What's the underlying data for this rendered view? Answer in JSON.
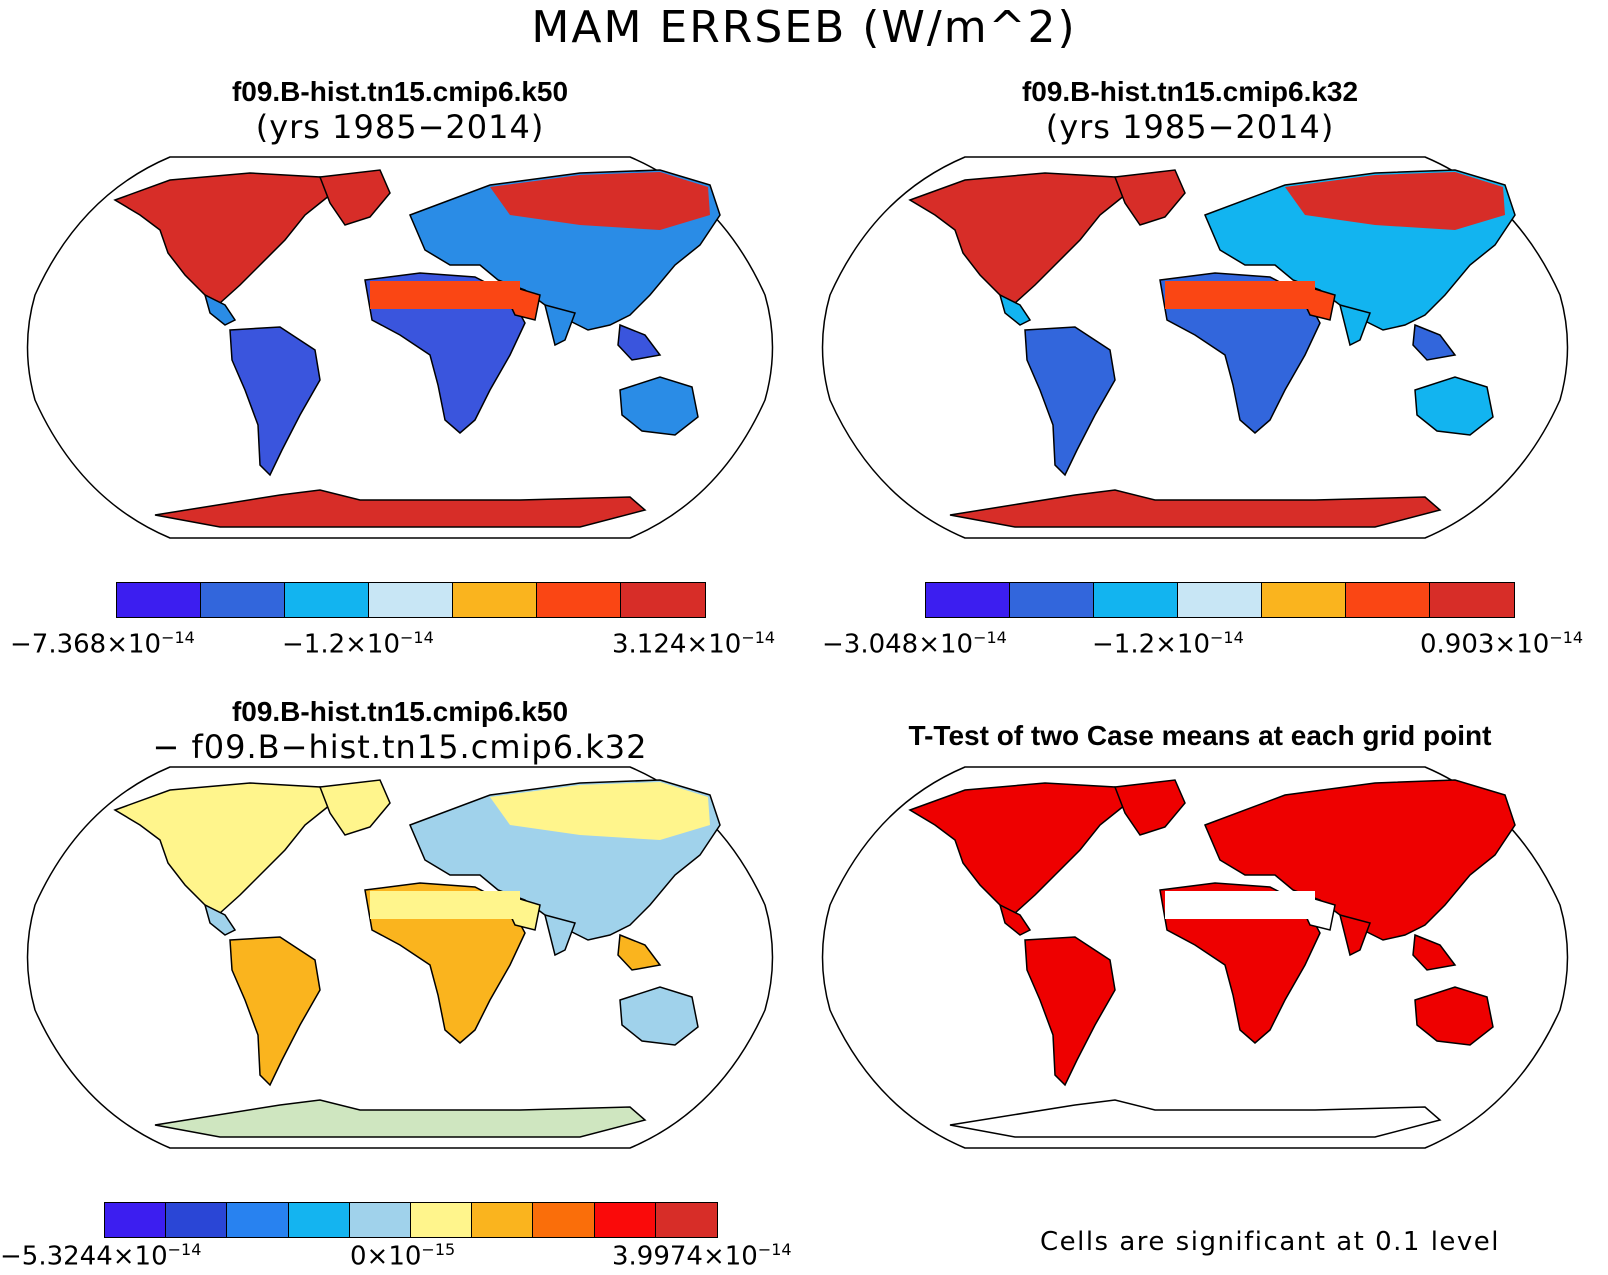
{
  "title": "MAM ERRSEB (W/m^2)",
  "panels": {
    "k50": {
      "title": "f09.B-hist.tn15.cmip6.k50",
      "subtitle": "(yrs 1985−2014)"
    },
    "k32": {
      "title": "f09.B-hist.tn15.cmip6.k32",
      "subtitle": "(yrs 1985−2014)"
    },
    "diff": {
      "title": "f09.B-hist.tn15.cmip6.k50",
      "subtitle": "− f09.B−hist.tn15.cmip6.k32"
    },
    "ttest": {
      "title": "T-Test of two Case means at each grid point",
      "footnote": "Cells are significant at 0.1 level"
    }
  },
  "colorbars": {
    "k50": {
      "colors": [
        "#3c1ef0",
        "#3266dc",
        "#12b4f0",
        "#c8e6f5",
        "#fab41e",
        "#fa4614",
        "#d72d28"
      ],
      "ticks": [
        {
          "mant": "−7.368×10",
          "exp": "−14"
        },
        {
          "mant": "−1.2×10",
          "exp": "−14"
        },
        {
          "mant": "3.124×10",
          "exp": "−14"
        }
      ]
    },
    "k32": {
      "colors": [
        "#3c1ef0",
        "#3266dc",
        "#12b4f0",
        "#c8e6f5",
        "#fab41e",
        "#fa4614",
        "#d72d28"
      ],
      "ticks": [
        {
          "mant": "−3.048×10",
          "exp": "−14"
        },
        {
          "mant": "−1.2×10",
          "exp": "−14"
        },
        {
          "mant": "0.903×10",
          "exp": "−14"
        }
      ]
    },
    "diff": {
      "colors": [
        "#3c1ef0",
        "#2a46d6",
        "#2882f0",
        "#14b4f0",
        "#a0d2eb",
        "#fff58c",
        "#fab41e",
        "#fa6e0a",
        "#fa0a0a",
        "#d72d28"
      ],
      "ticks": [
        {
          "mant": "−5.3244×10",
          "exp": "−14"
        },
        {
          "mant": "0×10",
          "exp": "−15"
        },
        {
          "mant": "3.9974×10",
          "exp": "−14"
        }
      ]
    }
  },
  "map_fills": {
    "k50": {
      "north": "#d72d28",
      "mid": "#2a8ce6",
      "tropics": "#3a55dd",
      "desert": "#fa4614",
      "antarctic": "#d72d28"
    },
    "k32": {
      "north": "#d72d28",
      "mid": "#12b4f0",
      "tropics": "#3266dc",
      "desert": "#fa4614",
      "antarctic": "#d72d28"
    },
    "diff": {
      "north": "#fff58c",
      "mid": "#a0d2eb",
      "tropics": "#fab41e",
      "desert": "#fff58c",
      "antarctic": "#cfe6c0"
    },
    "ttest": {
      "north": "#ee0000",
      "mid": "#ee0000",
      "tropics": "#ee0000",
      "desert": "#ffffff",
      "antarctic": "#ffffff"
    }
  }
}
